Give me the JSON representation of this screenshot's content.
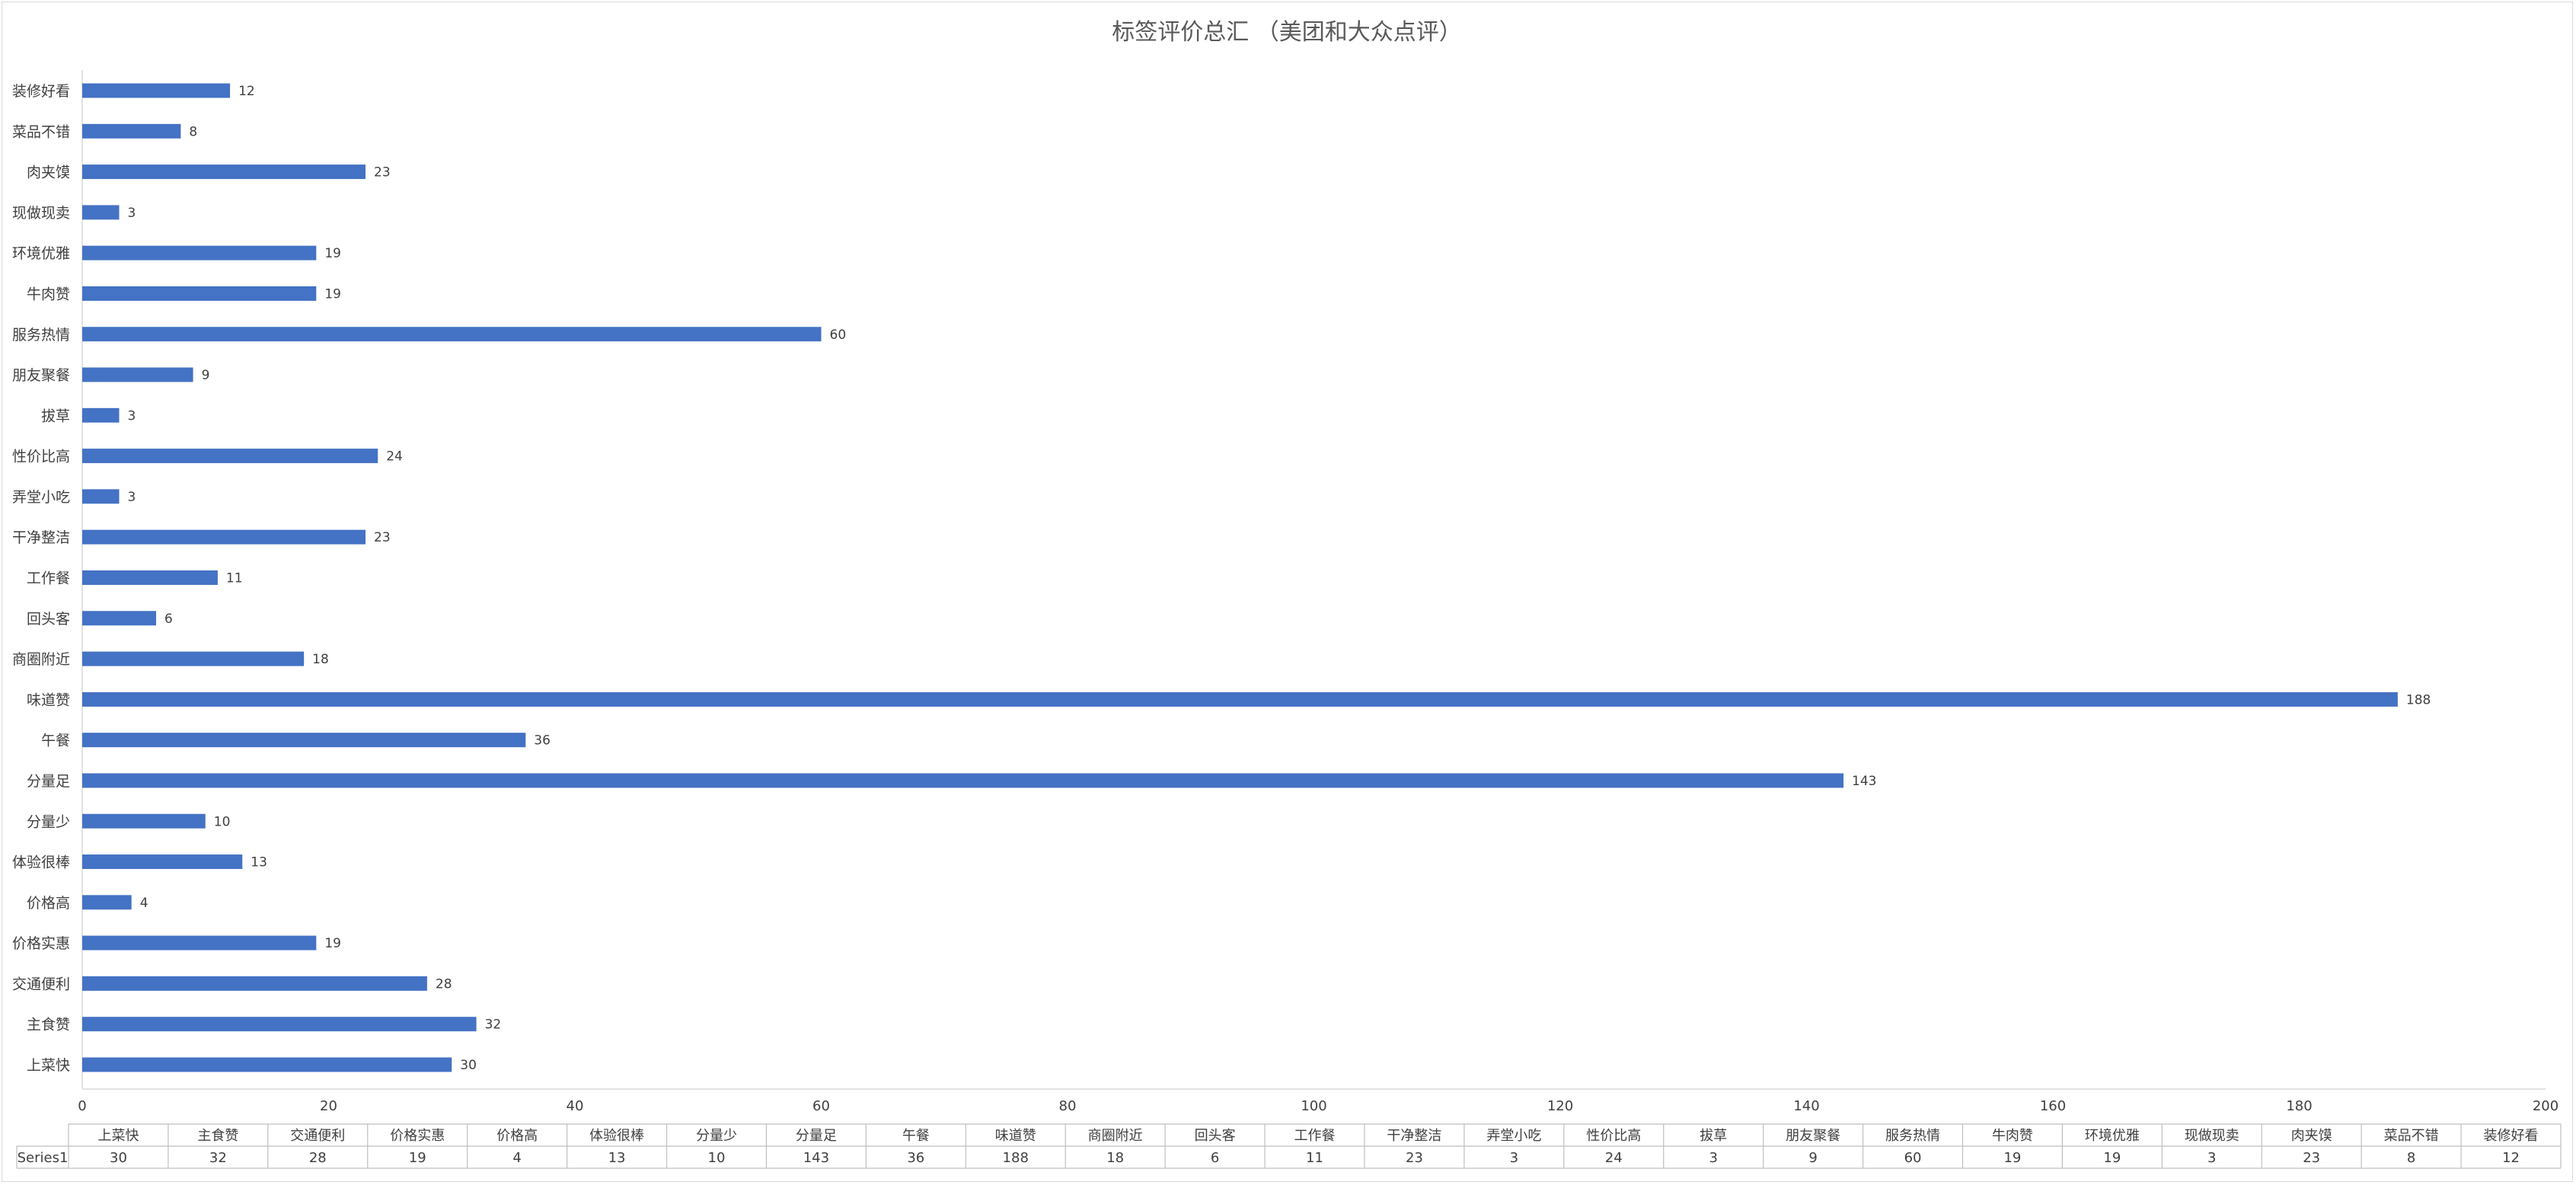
{
  "chart_data": {
    "type": "bar",
    "orientation": "horizontal",
    "title": "标签评价总汇 （美团和大众点评）",
    "categories": [
      "上菜快",
      "主食赞",
      "交通便利",
      "价格实惠",
      "价格高",
      "体验很棒",
      "分量少",
      "分量足",
      "午餐",
      "味道赞",
      "商圈附近",
      "回头客",
      "工作餐",
      "干净整洁",
      "弄堂小吃",
      "性价比高",
      "拔草",
      "朋友聚餐",
      "服务热情",
      "牛肉赞",
      "环境优雅",
      "现做现卖",
      "肉夹馍",
      "菜品不错",
      "装修好看"
    ],
    "series": [
      {
        "name": "Series1",
        "values": [
          30,
          32,
          28,
          19,
          4,
          13,
          10,
          143,
          36,
          188,
          18,
          6,
          11,
          23,
          3,
          24,
          3,
          9,
          60,
          19,
          19,
          3,
          23,
          8,
          12
        ],
        "color": "#4472c4"
      }
    ],
    "xlim": [
      0,
      200
    ],
    "x_ticks": [
      0,
      20,
      40,
      60,
      80,
      100,
      120,
      140,
      160,
      180,
      200
    ],
    "grid": false,
    "data_labels": true,
    "data_table": true,
    "colors": {
      "bar": "#4472c4",
      "axis": "#d9d9d9",
      "text": "#404040",
      "title": "#595959"
    }
  }
}
